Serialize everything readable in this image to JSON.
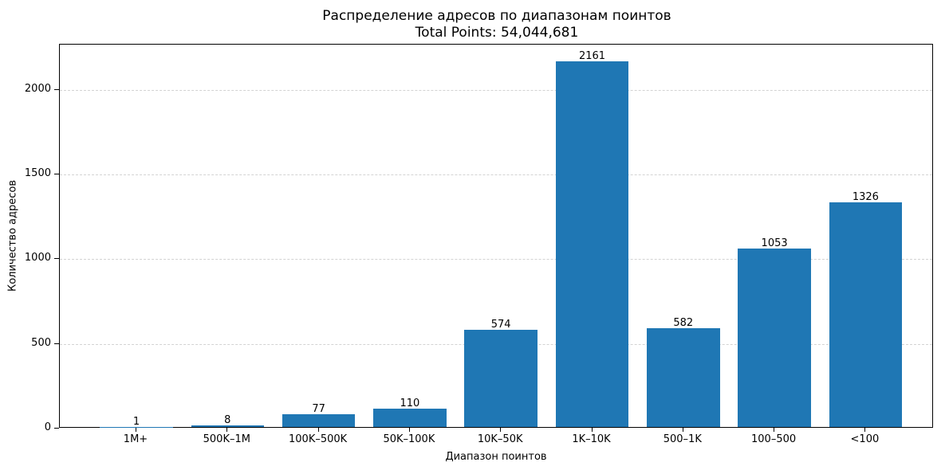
{
  "chart": {
    "title_line1": "Распределение адресов по диапазонам поинтов",
    "title_line2": "Total Points: 54,044,681",
    "xlabel": "Диапазон поинтов",
    "ylabel": "Количество адресов",
    "bar_color": "#1f77b4",
    "grid_color": "#d3d3d3"
  },
  "chart_data": {
    "type": "bar",
    "title": "Распределение адресов по диапазонам поинтов\nTotal Points: 54,044,681",
    "xlabel": "Диапазон поинтов",
    "ylabel": "Количество адресов",
    "categories": [
      "1M+",
      "500K–1M",
      "100K–500K",
      "50K–100K",
      "10K–50K",
      "1K–10K",
      "500–1K",
      "100–500",
      "<100"
    ],
    "values": [
      1,
      8,
      77,
      110,
      574,
      2161,
      582,
      1053,
      1326
    ],
    "data_labels": [
      "1",
      "8",
      "77",
      "110",
      "574",
      "2161",
      "582",
      "1053",
      "1326"
    ],
    "ylim": [
      0,
      2268
    ],
    "yticks": [
      0,
      500,
      1000,
      1500,
      2000
    ],
    "ytick_labels": [
      "0",
      "500",
      "1000",
      "1500",
      "2000"
    ],
    "grid": {
      "axis": "y",
      "style": "dashed"
    },
    "legend": null,
    "color": "#1f77b4"
  }
}
